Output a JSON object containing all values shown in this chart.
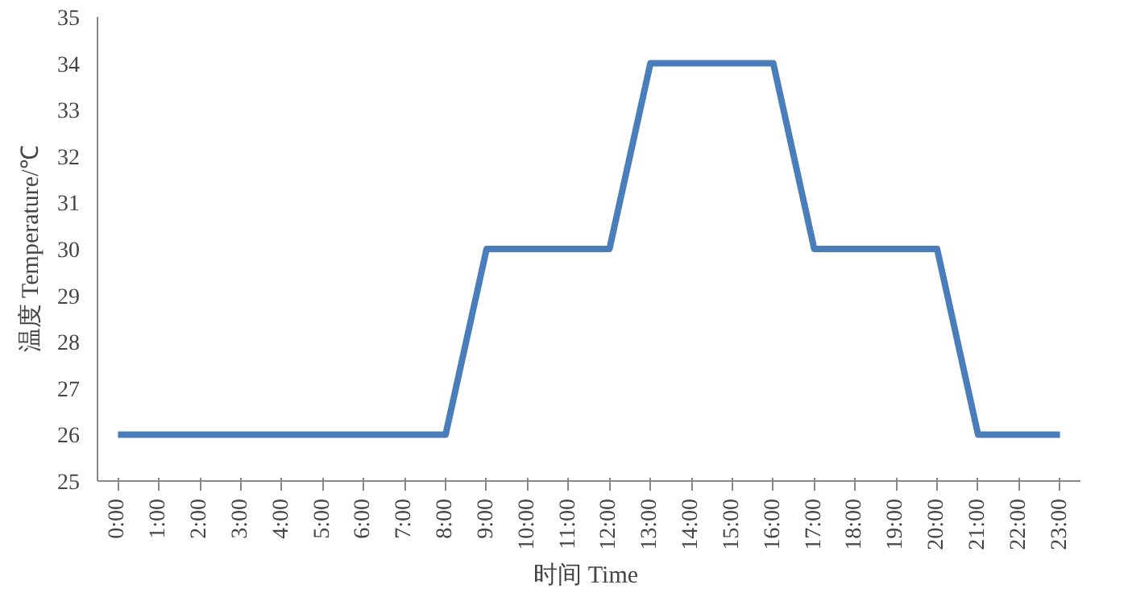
{
  "chart_data": {
    "type": "line",
    "xlabel": "时间  Time",
    "ylabel": "温度 Temperature/℃",
    "categories": [
      "0:00",
      "1:00",
      "2:00",
      "3:00",
      "4:00",
      "5:00",
      "6:00",
      "7:00",
      "8:00",
      "9:00",
      "10:00",
      "11:00",
      "12:00",
      "13:00",
      "14:00",
      "15:00",
      "16:00",
      "17:00",
      "18:00",
      "19:00",
      "20:00",
      "21:00",
      "22:00",
      "23:00"
    ],
    "series": [
      {
        "color": "#4a7ebb",
        "values": [
          26,
          26,
          26,
          26,
          26,
          26,
          26,
          26,
          26,
          30,
          30,
          30,
          30,
          34,
          34,
          34,
          34,
          30,
          30,
          30,
          30,
          26,
          26,
          26
        ]
      }
    ],
    "ylim": [
      25,
      35
    ],
    "yticks": [
      25,
      26,
      27,
      28,
      29,
      30,
      31,
      32,
      33,
      34,
      35
    ],
    "grid": false,
    "marker": "none",
    "line_style": "solid"
  }
}
